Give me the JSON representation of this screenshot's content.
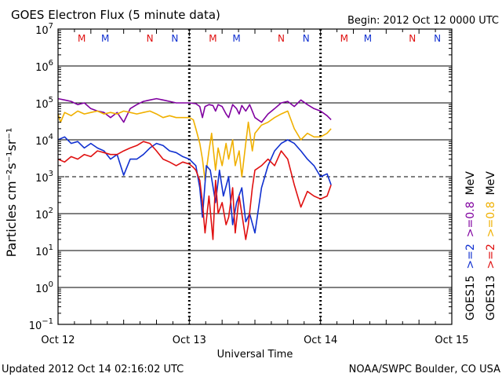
{
  "chart_data": {
    "type": "line",
    "title": "GOES Electron Flux (5 minute data)",
    "begin_label": "Begin: 2012 Oct 12 0000 UTC",
    "xlabel": "Universal Time",
    "ylabel": "Particles cm⁻²s⁻¹sr⁻¹",
    "updated": "Updated 2012 Oct 14 02:16:02 UTC",
    "credit": "NOAA/SWPC Boulder, CO USA",
    "x_unit": "days since 2012 Oct 12 00:00 UTC",
    "xlim": [
      0,
      3
    ],
    "x_ticks": [
      {
        "value": 0,
        "label": "Oct 12"
      },
      {
        "value": 1,
        "label": "Oct 13"
      },
      {
        "value": 2,
        "label": "Oct 14"
      },
      {
        "value": 3,
        "label": "Oct 15"
      }
    ],
    "ylog": true,
    "ylim_exp": [
      -1,
      7
    ],
    "y_ticks": [
      {
        "exp": 7,
        "base": "10",
        "sup": "7"
      },
      {
        "exp": 6,
        "base": "10",
        "sup": "6"
      },
      {
        "exp": 5,
        "base": "10",
        "sup": "5"
      },
      {
        "exp": 4,
        "base": "10",
        "sup": "4"
      },
      {
        "exp": 3,
        "base": "10",
        "sup": "3"
      },
      {
        "exp": 2,
        "base": "10",
        "sup": "2"
      },
      {
        "exp": 1,
        "base": "10",
        "sup": "1"
      },
      {
        "exp": 0,
        "base": "10",
        "sup": "0"
      },
      {
        "exp": -1,
        "base": "10",
        "sup": "−1"
      }
    ],
    "gridlines_exp": [
      6,
      5,
      4,
      2,
      1,
      0
    ],
    "dashed_threshold_exp": 3,
    "day_dividers": [
      1,
      2
    ],
    "mn_markers": [
      {
        "x": 0.18,
        "letter": "M",
        "color": "#e01010"
      },
      {
        "x": 0.36,
        "letter": "M",
        "color": "#1030d0"
      },
      {
        "x": 0.7,
        "letter": "N",
        "color": "#e01010"
      },
      {
        "x": 0.89,
        "letter": "N",
        "color": "#1030d0"
      },
      {
        "x": 1.18,
        "letter": "M",
        "color": "#e01010"
      },
      {
        "x": 1.36,
        "letter": "M",
        "color": "#1030d0"
      },
      {
        "x": 1.7,
        "letter": "N",
        "color": "#e01010"
      },
      {
        "x": 1.89,
        "letter": "N",
        "color": "#1030d0"
      },
      {
        "x": 2.18,
        "letter": "M",
        "color": "#e01010"
      },
      {
        "x": 2.36,
        "letter": "M",
        "color": "#1030d0"
      },
      {
        "x": 2.7,
        "letter": "N",
        "color": "#e01010"
      },
      {
        "x": 2.89,
        "letter": "N",
        "color": "#1030d0"
      }
    ],
    "legend": {
      "placement": "right-vertical",
      "columns": [
        {
          "entries": [
            {
              "text": "GOES15",
              "color": "#000000"
            },
            {
              "text": ">=2",
              "color": "#1030d0"
            },
            {
              "text": ">=0.8",
              "color": "#8000a0"
            },
            {
              "text": "MeV",
              "color": "#000000"
            }
          ]
        },
        {
          "entries": [
            {
              "text": "GOES13",
              "color": "#000000"
            },
            {
              "text": ">=2",
              "color": "#e01010"
            },
            {
              "text": ">=0.8",
              "color": "#f0b000"
            },
            {
              "text": "MeV",
              "color": "#000000"
            }
          ]
        }
      ]
    },
    "series": [
      {
        "name": "GOES15 >=0.8 MeV",
        "color": "#8000a0",
        "x": [
          0,
          0.05,
          0.1,
          0.15,
          0.2,
          0.25,
          0.3,
          0.35,
          0.4,
          0.45,
          0.5,
          0.55,
          0.6,
          0.65,
          0.7,
          0.75,
          0.8,
          0.85,
          0.9,
          0.95,
          1.0,
          1.05,
          1.08,
          1.1,
          1.12,
          1.15,
          1.18,
          1.2,
          1.22,
          1.25,
          1.28,
          1.3,
          1.33,
          1.36,
          1.38,
          1.4,
          1.43,
          1.46,
          1.5,
          1.55,
          1.6,
          1.65,
          1.7,
          1.75,
          1.8,
          1.85,
          1.9,
          1.95,
          2.0,
          2.05,
          2.08
        ],
        "y": [
          130000,
          120000,
          110000,
          90000,
          100000,
          70000,
          60000,
          55000,
          40000,
          55000,
          30000,
          70000,
          90000,
          110000,
          120000,
          130000,
          120000,
          110000,
          100000,
          100000,
          100000,
          95000,
          80000,
          40000,
          80000,
          90000,
          85000,
          60000,
          90000,
          80000,
          50000,
          40000,
          90000,
          70000,
          50000,
          85000,
          60000,
          90000,
          40000,
          30000,
          50000,
          70000,
          100000,
          110000,
          80000,
          120000,
          90000,
          70000,
          60000,
          45000,
          35000
        ]
      },
      {
        "name": "GOES13 >=0.8 MeV",
        "color": "#f0b000",
        "x": [
          0,
          0.02,
          0.05,
          0.1,
          0.15,
          0.2,
          0.25,
          0.3,
          0.35,
          0.4,
          0.45,
          0.5,
          0.55,
          0.6,
          0.65,
          0.7,
          0.75,
          0.8,
          0.85,
          0.9,
          0.95,
          1.0,
          1.03,
          1.05,
          1.08,
          1.1,
          1.12,
          1.15,
          1.17,
          1.2,
          1.22,
          1.25,
          1.28,
          1.3,
          1.33,
          1.35,
          1.38,
          1.4,
          1.43,
          1.45,
          1.48,
          1.5,
          1.55,
          1.6,
          1.65,
          1.7,
          1.75,
          1.8,
          1.85,
          1.9,
          1.95,
          2.0,
          2.05,
          2.08
        ],
        "y": [
          50000,
          30000,
          55000,
          45000,
          60000,
          50000,
          55000,
          60000,
          50000,
          55000,
          50000,
          60000,
          55000,
          50000,
          55000,
          60000,
          50000,
          40000,
          45000,
          40000,
          40000,
          40000,
          35000,
          20000,
          8000,
          3000,
          800,
          5000,
          15000,
          1500,
          6000,
          2000,
          8000,
          3000,
          10000,
          2000,
          5000,
          1000,
          8000,
          30000,
          5000,
          15000,
          25000,
          30000,
          40000,
          50000,
          60000,
          20000,
          10000,
          15000,
          12000,
          12000,
          15000,
          20000
        ]
      },
      {
        "name": "GOES15 >=2 MeV",
        "color": "#1030d0",
        "x": [
          0,
          0.05,
          0.1,
          0.15,
          0.2,
          0.25,
          0.3,
          0.35,
          0.4,
          0.45,
          0.5,
          0.55,
          0.6,
          0.65,
          0.7,
          0.75,
          0.8,
          0.85,
          0.9,
          0.95,
          1.0,
          1.05,
          1.08,
          1.1,
          1.13,
          1.16,
          1.2,
          1.23,
          1.26,
          1.3,
          1.33,
          1.36,
          1.4,
          1.43,
          1.46,
          1.5,
          1.55,
          1.6,
          1.65,
          1.7,
          1.75,
          1.8,
          1.85,
          1.9,
          1.95,
          2.0,
          2.05,
          2.08
        ],
        "y": [
          10000,
          12000,
          8000,
          9000,
          6000,
          8000,
          6000,
          5000,
          3000,
          4000,
          1100,
          3000,
          3000,
          4000,
          6000,
          8000,
          7000,
          5000,
          4500,
          3500,
          3000,
          2000,
          500,
          80,
          2000,
          1500,
          200,
          1500,
          300,
          1000,
          50,
          200,
          500,
          60,
          100,
          30,
          500,
          2000,
          5000,
          8000,
          10000,
          8000,
          5000,
          3000,
          2000,
          1000,
          1200,
          600
        ]
      },
      {
        "name": "GOES13 >=2 MeV",
        "color": "#e01010",
        "x": [
          0,
          0.05,
          0.1,
          0.15,
          0.2,
          0.25,
          0.3,
          0.35,
          0.4,
          0.45,
          0.5,
          0.55,
          0.6,
          0.65,
          0.7,
          0.75,
          0.8,
          0.85,
          0.9,
          0.95,
          1.0,
          1.03,
          1.05,
          1.08,
          1.1,
          1.12,
          1.15,
          1.18,
          1.2,
          1.22,
          1.25,
          1.28,
          1.3,
          1.33,
          1.35,
          1.38,
          1.4,
          1.43,
          1.45,
          1.48,
          1.5,
          1.55,
          1.6,
          1.65,
          1.7,
          1.75,
          1.8,
          1.85,
          1.9,
          1.95,
          2.0,
          2.05,
          2.08
        ],
        "y": [
          3000,
          2500,
          3500,
          3000,
          4000,
          3500,
          5000,
          4500,
          4000,
          4000,
          5000,
          6000,
          7000,
          9000,
          8000,
          5000,
          3000,
          2500,
          2000,
          2500,
          2200,
          1800,
          1500,
          800,
          200,
          30,
          300,
          20,
          800,
          100,
          200,
          50,
          80,
          500,
          30,
          300,
          100,
          20,
          50,
          500,
          1500,
          2000,
          3000,
          2000,
          5000,
          3000,
          600,
          150,
          400,
          300,
          250,
          300,
          600
        ]
      }
    ]
  }
}
